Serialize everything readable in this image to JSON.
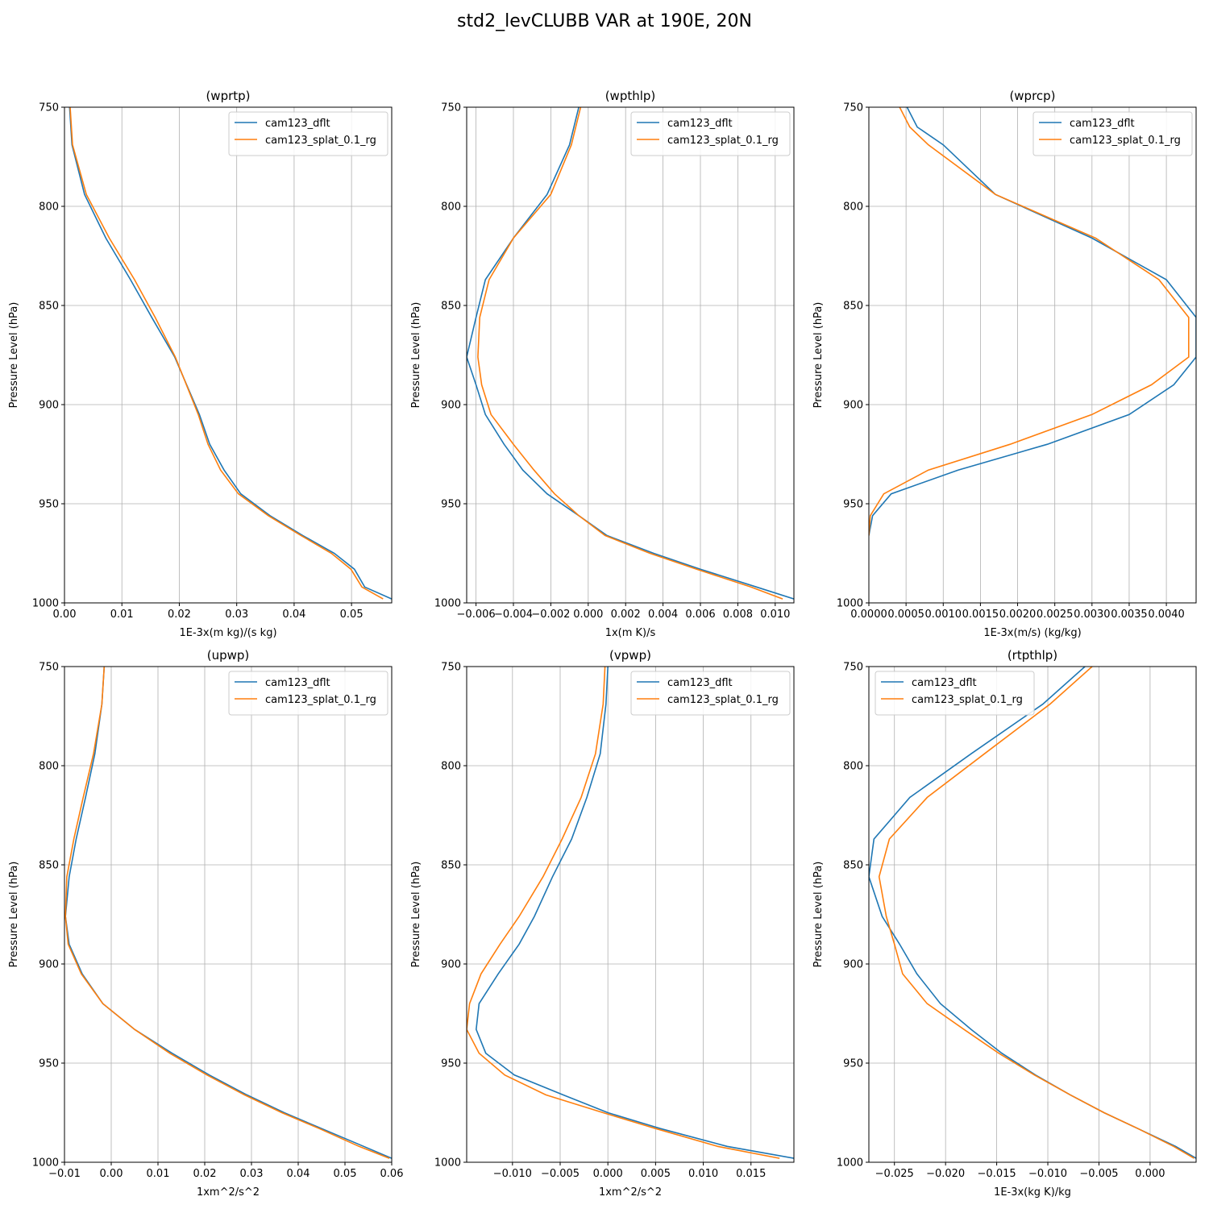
{
  "title": "std2_levCLUBB VAR at 190E, 20N",
  "colors": {
    "cam123_dflt": "#1f77b4",
    "cam123_splat_0.1_rg": "#ff7f0e",
    "grid": "#b0b0b0"
  },
  "chart_data": [
    {
      "type": "line",
      "title": "(wprtp)",
      "xlabel": "1E-3x(m kg)/(s kg)",
      "ylabel": "Pressure Level (hPa)",
      "xlim": [
        0.0,
        0.057
      ],
      "ylim": [
        1000,
        750
      ],
      "xticks": [
        "0.00",
        "0.01",
        "0.02",
        "0.03",
        "0.04",
        "0.05"
      ],
      "xtick_values": [
        0.0,
        0.01,
        0.02,
        0.03,
        0.04,
        0.05
      ],
      "yticks": [
        750,
        800,
        850,
        900,
        950,
        1000
      ],
      "grid": true,
      "legend": "upper right",
      "y": [
        746,
        769,
        794,
        816,
        837,
        856,
        876,
        905,
        920,
        933,
        945,
        956,
        966,
        975,
        983,
        992,
        998
      ],
      "series": [
        {
          "name": "cam123_dflt",
          "x": [
            0.0008,
            0.0013,
            0.0035,
            0.0072,
            0.0115,
            0.0152,
            0.0192,
            0.0235,
            0.0253,
            0.0278,
            0.0307,
            0.0358,
            0.0415,
            0.047,
            0.0505,
            0.0523,
            0.057
          ]
        },
        {
          "name": "cam123_splat_0.1_rg",
          "x": [
            0.0009,
            0.0014,
            0.0038,
            0.0078,
            0.0122,
            0.0158,
            0.0193,
            0.0233,
            0.025,
            0.0272,
            0.0303,
            0.0355,
            0.0412,
            0.0465,
            0.0499,
            0.0518,
            0.0555
          ]
        }
      ]
    },
    {
      "type": "line",
      "title": "(wpthlp)",
      "xlabel": "1x(m K)/s",
      "ylabel": "Pressure Level (hPa)",
      "xlim": [
        -0.0065,
        0.011
      ],
      "ylim": [
        1000,
        750
      ],
      "xticks": [
        "−0.006",
        "−0.004",
        "−0.002",
        "0.000",
        "0.002",
        "0.004",
        "0.006",
        "0.008",
        "0.010"
      ],
      "xtick_values": [
        -0.006,
        -0.004,
        -0.002,
        0.0,
        0.002,
        0.004,
        0.006,
        0.008,
        0.01
      ],
      "yticks": [
        750,
        800,
        850,
        900,
        950,
        1000
      ],
      "grid": true,
      "legend": "upper right",
      "y": [
        746,
        769,
        794,
        816,
        837,
        856,
        876,
        890,
        905,
        920,
        933,
        945,
        956,
        966,
        975,
        983,
        992,
        998
      ],
      "series": [
        {
          "name": "cam123_dflt",
          "x": [
            -0.0004,
            -0.001,
            -0.0022,
            -0.004,
            -0.0055,
            -0.006,
            -0.0065,
            -0.006,
            -0.0055,
            -0.0045,
            -0.0035,
            -0.0022,
            -0.0005,
            0.001,
            0.0035,
            0.006,
            0.009,
            0.011
          ]
        },
        {
          "name": "cam123_splat_0.1_rg",
          "x": [
            -0.0003,
            -0.0009,
            -0.002,
            -0.004,
            -0.0053,
            -0.0058,
            -0.0059,
            -0.0057,
            -0.0052,
            -0.004,
            -0.0029,
            -0.0018,
            -0.0005,
            0.0009,
            0.0033,
            0.0058,
            0.0087,
            0.0104
          ]
        }
      ]
    },
    {
      "type": "line",
      "title": "(wprcp)",
      "xlabel": "1E-3x(m/s) (kg/kg)",
      "ylabel": "Pressure Level (hPa)",
      "xlim": [
        0.0,
        0.0044
      ],
      "ylim": [
        1000,
        750
      ],
      "xticks": [
        "0.0000",
        "0.0005",
        "0.0010",
        "0.0015",
        "0.0020",
        "0.0025",
        "0.0030",
        "0.0035",
        "0.0040"
      ],
      "xtick_values": [
        0.0,
        0.0005,
        0.001,
        0.0015,
        0.002,
        0.0025,
        0.003,
        0.0035,
        0.004
      ],
      "yticks": [
        750,
        800,
        850,
        900,
        950,
        1000
      ],
      "grid": true,
      "legend": "upper right",
      "y": [
        749,
        760,
        769,
        794,
        816,
        837,
        856,
        876,
        890,
        905,
        920,
        933,
        945,
        956,
        966
      ],
      "series": [
        {
          "name": "cam123_dflt",
          "x": [
            0.0005,
            0.00065,
            0.001,
            0.0017,
            0.003,
            0.004,
            0.0044,
            0.0044,
            0.0041,
            0.0035,
            0.0024,
            0.0012,
            0.0003,
            5e-05,
            0.0
          ]
        },
        {
          "name": "cam123_splat_0.1_rg",
          "x": [
            0.0004,
            0.00055,
            0.0008,
            0.0017,
            0.00305,
            0.0039,
            0.0043,
            0.0043,
            0.0038,
            0.003,
            0.0019,
            0.0008,
            0.0002,
            2e-05,
            0.0
          ]
        }
      ]
    },
    {
      "type": "line",
      "title": "(upwp)",
      "xlabel": "1xm^2/s^2",
      "ylabel": "Pressure Level (hPa)",
      "xlim": [
        -0.01,
        0.06
      ],
      "ylim": [
        1000,
        750
      ],
      "xticks": [
        "−0.01",
        "0.00",
        "0.01",
        "0.02",
        "0.03",
        "0.04",
        "0.05",
        "0.06"
      ],
      "xtick_values": [
        -0.01,
        0.0,
        0.01,
        0.02,
        0.03,
        0.04,
        0.05,
        0.06
      ],
      "yticks": [
        750,
        800,
        850,
        900,
        950,
        1000
      ],
      "grid": true,
      "legend": "upper right",
      "y": [
        750,
        769,
        794,
        816,
        837,
        856,
        876,
        890,
        905,
        920,
        933,
        945,
        956,
        966,
        975,
        983,
        992,
        998
      ],
      "series": [
        {
          "name": "cam123_dflt",
          "x": [
            -0.0015,
            -0.002,
            -0.0035,
            -0.0055,
            -0.0075,
            -0.009,
            -0.0098,
            -0.009,
            -0.0062,
            -0.0018,
            0.005,
            0.013,
            0.021,
            0.029,
            0.037,
            0.045,
            0.054,
            0.06
          ]
        },
        {
          "name": "cam123_splat_0.1_rg",
          "x": [
            -0.0015,
            -0.002,
            -0.0038,
            -0.006,
            -0.008,
            -0.0095,
            -0.0098,
            -0.0092,
            -0.0064,
            -0.0018,
            0.005,
            0.0125,
            0.0205,
            0.0285,
            0.0365,
            0.0445,
            0.053,
            0.0595
          ]
        }
      ]
    },
    {
      "type": "line",
      "title": "(vpwp)",
      "xlabel": "1xm^2/s^2",
      "ylabel": "Pressure Level (hPa)",
      "xlim": [
        -0.0148,
        0.0195
      ],
      "ylim": [
        1000,
        750
      ],
      "xticks": [
        "−0.010",
        "−0.005",
        "0.000",
        "0.005",
        "0.010",
        "0.015"
      ],
      "xtick_values": [
        -0.01,
        -0.005,
        0.0,
        0.005,
        0.01,
        0.015
      ],
      "yticks": [
        750,
        800,
        850,
        900,
        950,
        1000
      ],
      "grid": true,
      "legend": "upper right",
      "y": [
        750,
        769,
        794,
        816,
        837,
        856,
        876,
        890,
        905,
        920,
        933,
        945,
        956,
        966,
        975,
        983,
        992,
        998
      ],
      "series": [
        {
          "name": "cam123_dflt",
          "x": [
            0.0,
            -0.0002,
            -0.0008,
            -0.0022,
            -0.0038,
            -0.0058,
            -0.0077,
            -0.0093,
            -0.0115,
            -0.0135,
            -0.0138,
            -0.0128,
            -0.0098,
            -0.0047,
            0.0,
            0.0055,
            0.0125,
            0.0195
          ]
        },
        {
          "name": "cam123_splat_0.1_rg",
          "x": [
            -0.0003,
            -0.0005,
            -0.0013,
            -0.0028,
            -0.0048,
            -0.0068,
            -0.0093,
            -0.0113,
            -0.0133,
            -0.0145,
            -0.0148,
            -0.0135,
            -0.0108,
            -0.0065,
            -0.0005,
            0.005,
            0.0115,
            0.018
          ]
        }
      ]
    },
    {
      "type": "line",
      "title": "(rtpthlp)",
      "xlabel": "1E-3x(kg K)/kg",
      "ylabel": "Pressure Level (hPa)",
      "xlim": [
        -0.0275,
        0.0045
      ],
      "ylim": [
        1000,
        750
      ],
      "xticks": [
        "−0.025",
        "−0.020",
        "−0.015",
        "−0.010",
        "−0.005",
        "0.000"
      ],
      "xtick_values": [
        -0.025,
        -0.02,
        -0.015,
        -0.01,
        -0.005,
        0.0
      ],
      "yticks": [
        750,
        800,
        850,
        900,
        950,
        1000
      ],
      "grid": true,
      "legend": "upper left",
      "y": [
        746,
        769,
        794,
        816,
        837,
        856,
        876,
        890,
        905,
        920,
        933,
        945,
        956,
        966,
        975,
        983,
        992,
        998
      ],
      "series": [
        {
          "name": "cam123_dflt",
          "x": [
            -0.0055,
            -0.0105,
            -0.0175,
            -0.0235,
            -0.027,
            -0.0275,
            -0.0262,
            -0.0245,
            -0.0228,
            -0.0205,
            -0.0175,
            -0.0145,
            -0.0112,
            -0.0078,
            -0.0045,
            -0.0012,
            0.0025,
            0.0045
          ]
        },
        {
          "name": "cam123_splat_0.1_rg",
          "x": [
            -0.0048,
            -0.0098,
            -0.0162,
            -0.0218,
            -0.0255,
            -0.0265,
            -0.0258,
            -0.025,
            -0.0242,
            -0.0218,
            -0.0182,
            -0.0148,
            -0.0113,
            -0.0078,
            -0.0045,
            -0.0012,
            0.0023,
            0.0043
          ]
        }
      ]
    }
  ]
}
